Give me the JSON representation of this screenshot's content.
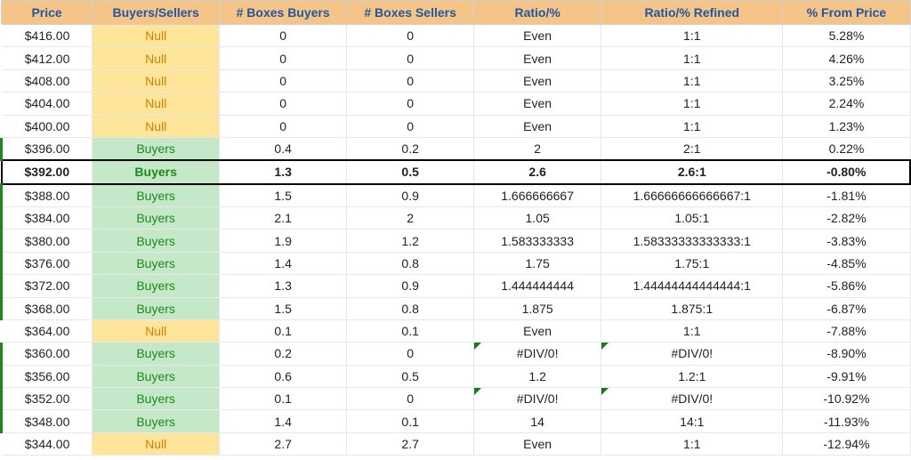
{
  "table": {
    "columns": [
      "Price",
      "Buyers/Sellers",
      "# Boxes Buyers",
      "# Boxes Sellers",
      "Ratio/%",
      "Ratio/% Refined",
      "% From Price"
    ],
    "colors": {
      "header_bg": "#f4c587",
      "header_fg": "#2156a5",
      "null_bg": "#ffe599",
      "null_fg": "#cc8400",
      "buyers_bg": "#c5e8c9",
      "buyers_fg": "#1a8a1a",
      "border": "#e8e8e8",
      "highlight_border": "#000000"
    },
    "rows": [
      {
        "price": "$416.00",
        "bs": "Null",
        "kind": "null",
        "boxes_buyers": "0",
        "boxes_sellers": "0",
        "ratio": "Even",
        "ratio_refined": "1:1",
        "pct_from_price": "5.28%",
        "highlight": false,
        "err_ratio": false,
        "err_refined": false
      },
      {
        "price": "$412.00",
        "bs": "Null",
        "kind": "null",
        "boxes_buyers": "0",
        "boxes_sellers": "0",
        "ratio": "Even",
        "ratio_refined": "1:1",
        "pct_from_price": "4.26%",
        "highlight": false,
        "err_ratio": false,
        "err_refined": false
      },
      {
        "price": "$408.00",
        "bs": "Null",
        "kind": "null",
        "boxes_buyers": "0",
        "boxes_sellers": "0",
        "ratio": "Even",
        "ratio_refined": "1:1",
        "pct_from_price": "3.25%",
        "highlight": false,
        "err_ratio": false,
        "err_refined": false
      },
      {
        "price": "$404.00",
        "bs": "Null",
        "kind": "null",
        "boxes_buyers": "0",
        "boxes_sellers": "0",
        "ratio": "Even",
        "ratio_refined": "1:1",
        "pct_from_price": "2.24%",
        "highlight": false,
        "err_ratio": false,
        "err_refined": false
      },
      {
        "price": "$400.00",
        "bs": "Null",
        "kind": "null",
        "boxes_buyers": "0",
        "boxes_sellers": "0",
        "ratio": "Even",
        "ratio_refined": "1:1",
        "pct_from_price": "1.23%",
        "highlight": false,
        "err_ratio": false,
        "err_refined": false
      },
      {
        "price": "$396.00",
        "bs": "Buyers",
        "kind": "buyers",
        "boxes_buyers": "0.4",
        "boxes_sellers": "0.2",
        "ratio": "2",
        "ratio_refined": "2:1",
        "pct_from_price": "0.22%",
        "highlight": false,
        "err_ratio": false,
        "err_refined": false
      },
      {
        "price": "$392.00",
        "bs": "Buyers",
        "kind": "buyers",
        "boxes_buyers": "1.3",
        "boxes_sellers": "0.5",
        "ratio": "2.6",
        "ratio_refined": "2.6:1",
        "pct_from_price": "-0.80%",
        "highlight": true,
        "err_ratio": false,
        "err_refined": false
      },
      {
        "price": "$388.00",
        "bs": "Buyers",
        "kind": "buyers",
        "boxes_buyers": "1.5",
        "boxes_sellers": "0.9",
        "ratio": "1.666666667",
        "ratio_refined": "1.66666666666667:1",
        "pct_from_price": "-1.81%",
        "highlight": false,
        "err_ratio": false,
        "err_refined": false
      },
      {
        "price": "$384.00",
        "bs": "Buyers",
        "kind": "buyers",
        "boxes_buyers": "2.1",
        "boxes_sellers": "2",
        "ratio": "1.05",
        "ratio_refined": "1.05:1",
        "pct_from_price": "-2.82%",
        "highlight": false,
        "err_ratio": false,
        "err_refined": false
      },
      {
        "price": "$380.00",
        "bs": "Buyers",
        "kind": "buyers",
        "boxes_buyers": "1.9",
        "boxes_sellers": "1.2",
        "ratio": "1.583333333",
        "ratio_refined": "1.58333333333333:1",
        "pct_from_price": "-3.83%",
        "highlight": false,
        "err_ratio": false,
        "err_refined": false
      },
      {
        "price": "$376.00",
        "bs": "Buyers",
        "kind": "buyers",
        "boxes_buyers": "1.4",
        "boxes_sellers": "0.8",
        "ratio": "1.75",
        "ratio_refined": "1.75:1",
        "pct_from_price": "-4.85%",
        "highlight": false,
        "err_ratio": false,
        "err_refined": false
      },
      {
        "price": "$372.00",
        "bs": "Buyers",
        "kind": "buyers",
        "boxes_buyers": "1.3",
        "boxes_sellers": "0.9",
        "ratio": "1.444444444",
        "ratio_refined": "1.44444444444444:1",
        "pct_from_price": "-5.86%",
        "highlight": false,
        "err_ratio": false,
        "err_refined": false
      },
      {
        "price": "$368.00",
        "bs": "Buyers",
        "kind": "buyers",
        "boxes_buyers": "1.5",
        "boxes_sellers": "0.8",
        "ratio": "1.875",
        "ratio_refined": "1.875:1",
        "pct_from_price": "-6.87%",
        "highlight": false,
        "err_ratio": false,
        "err_refined": false
      },
      {
        "price": "$364.00",
        "bs": "Null",
        "kind": "null",
        "boxes_buyers": "0.1",
        "boxes_sellers": "0.1",
        "ratio": "Even",
        "ratio_refined": "1:1",
        "pct_from_price": "-7.88%",
        "highlight": false,
        "err_ratio": false,
        "err_refined": false
      },
      {
        "price": "$360.00",
        "bs": "Buyers",
        "kind": "buyers",
        "boxes_buyers": "0.2",
        "boxes_sellers": "0",
        "ratio": "#DIV/0!",
        "ratio_refined": "#DIV/0!",
        "pct_from_price": "-8.90%",
        "highlight": false,
        "err_ratio": true,
        "err_refined": true
      },
      {
        "price": "$356.00",
        "bs": "Buyers",
        "kind": "buyers",
        "boxes_buyers": "0.6",
        "boxes_sellers": "0.5",
        "ratio": "1.2",
        "ratio_refined": "1.2:1",
        "pct_from_price": "-9.91%",
        "highlight": false,
        "err_ratio": false,
        "err_refined": false
      },
      {
        "price": "$352.00",
        "bs": "Buyers",
        "kind": "buyers",
        "boxes_buyers": "0.1",
        "boxes_sellers": "0",
        "ratio": "#DIV/0!",
        "ratio_refined": "#DIV/0!",
        "pct_from_price": "-10.92%",
        "highlight": false,
        "err_ratio": true,
        "err_refined": true
      },
      {
        "price": "$348.00",
        "bs": "Buyers",
        "kind": "buyers",
        "boxes_buyers": "1.4",
        "boxes_sellers": "0.1",
        "ratio": "14",
        "ratio_refined": "14:1",
        "pct_from_price": "-11.93%",
        "highlight": false,
        "err_ratio": false,
        "err_refined": false
      },
      {
        "price": "$344.00",
        "bs": "Null",
        "kind": "null",
        "boxes_buyers": "2.7",
        "boxes_sellers": "2.7",
        "ratio": "Even",
        "ratio_refined": "1:1",
        "pct_from_price": "-12.94%",
        "highlight": false,
        "err_ratio": false,
        "err_refined": false
      }
    ]
  }
}
